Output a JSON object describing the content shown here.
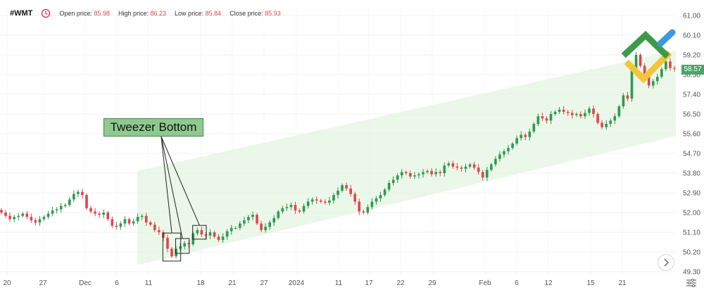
{
  "header": {
    "ticker": "#WMT",
    "open_label": "Open price:",
    "open_value": "85.98",
    "high_label": "High price:",
    "high_value": "86.23",
    "low_label": "Low price:",
    "low_value": "85.84",
    "close_label": "Close price:",
    "close_value": "85.93",
    "icon": "clock-alert-icon"
  },
  "annotation": {
    "text": "Tweezer Bottom"
  },
  "price_tag": {
    "value": "58.57"
  },
  "colors": {
    "up": "#2e9b4f",
    "down": "#e0454f",
    "channel": "#e4f4e1",
    "tag": "#48a56a"
  },
  "icons": {
    "nav": "chevron-right-icon",
    "settings": "sliders-icon",
    "logo": "brand-logo-icon"
  },
  "chart_data": {
    "type": "candlestick",
    "x_tick_labels": [
      "20",
      "27",
      "Dec",
      "6",
      "11",
      "18",
      "21",
      "27",
      "2024",
      "11",
      "17",
      "22",
      "29",
      "Feb",
      "6",
      "12",
      "15",
      "21"
    ],
    "y_tick_labels": [
      "61.00",
      "60.10",
      "59.20",
      "58.30",
      "57.40",
      "56.50",
      "55.60",
      "54.70",
      "53.80",
      "52.90",
      "52.00",
      "51.10",
      "50.20",
      "49.30"
    ],
    "ylim": [
      49.3,
      61.0
    ],
    "grid": true,
    "channel": {
      "lower_start": 49.6,
      "lower_end": 55.5,
      "upper_start": 53.9,
      "upper_end": 59.4
    },
    "closes": [
      52.0,
      51.85,
      51.7,
      51.8,
      51.85,
      51.95,
      51.8,
      51.65,
      51.55,
      51.7,
      51.8,
      51.95,
      52.1,
      52.15,
      52.3,
      52.35,
      52.6,
      52.85,
      52.95,
      52.8,
      52.2,
      52.05,
      51.95,
      51.9,
      52.0,
      51.7,
      51.4,
      51.35,
      51.5,
      51.7,
      51.5,
      51.6,
      51.8,
      51.85,
      51.55,
      51.45,
      51.2,
      51.1,
      50.85,
      50.35,
      50.0,
      50.35,
      50.45,
      50.6,
      50.55,
      51.05,
      51.2,
      51.0,
      50.95,
      51.1,
      50.9,
      50.75,
      50.9,
      51.15,
      51.3,
      51.3,
      51.5,
      51.65,
      51.8,
      51.9,
      51.5,
      51.2,
      51.35,
      51.55,
      51.75,
      52.05,
      52.2,
      52.25,
      52.35,
      52.1,
      52.05,
      52.3,
      52.5,
      52.6,
      52.55,
      52.5,
      52.45,
      52.55,
      52.8,
      53.0,
      53.25,
      53.1,
      52.85,
      52.5,
      52.05,
      52.0,
      52.25,
      52.5,
      52.65,
      52.8,
      53.05,
      53.35,
      53.5,
      53.7,
      53.85,
      53.8,
      53.65,
      53.7,
      53.75,
      53.85,
      53.9,
      53.75,
      53.85,
      53.8,
      54.15,
      54.25,
      54.1,
      54.05,
      54.0,
      54.1,
      54.2,
      54.05,
      53.85,
      53.6,
      53.95,
      54.2,
      54.45,
      54.65,
      54.8,
      54.95,
      55.15,
      55.4,
      55.55,
      55.45,
      55.7,
      56.05,
      56.4,
      56.3,
      56.2,
      56.5,
      56.6,
      56.7,
      56.6,
      56.55,
      56.45,
      56.5,
      56.4,
      56.55,
      56.75,
      56.5,
      56.1,
      55.9,
      56.05,
      56.2,
      56.4,
      56.85,
      57.35,
      57.2,
      58.5,
      59.2,
      58.7,
      58.3,
      57.8,
      58.0,
      58.2,
      58.55,
      58.9,
      58.6,
      58.57
    ]
  }
}
